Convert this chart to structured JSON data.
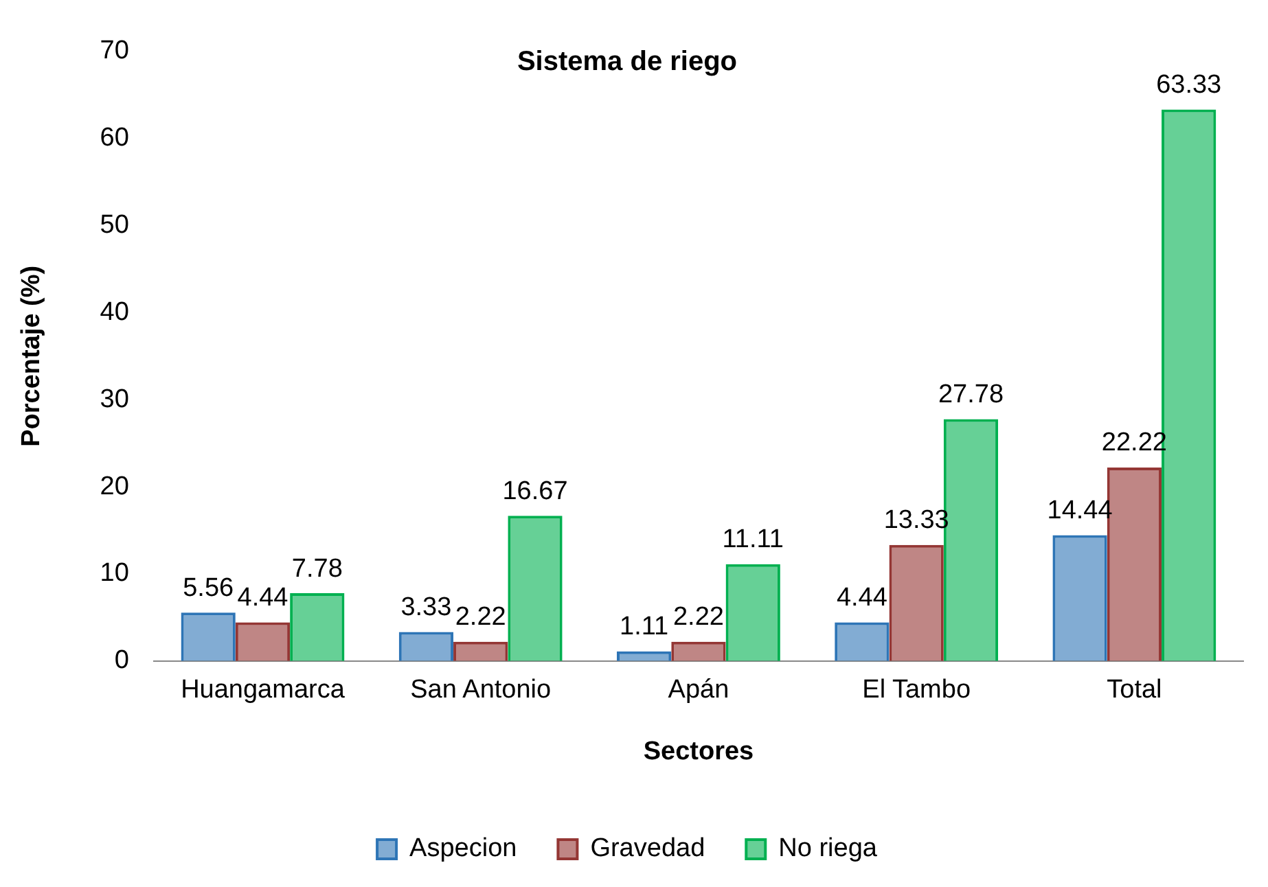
{
  "chart_data": {
    "type": "bar",
    "title": "Sistema de riego",
    "xlabel": "Sectores",
    "ylabel": "Porcentaje (%)",
    "categories": [
      "Huangamarca",
      "San Antonio",
      "Apán",
      "El Tambo",
      "Total"
    ],
    "series": [
      {
        "name": "Aspecion",
        "color": "#2e75b6",
        "values": [
          5.56,
          3.33,
          1.11,
          4.44,
          14.44
        ]
      },
      {
        "name": "Gravedad",
        "color": "#943634",
        "values": [
          4.44,
          2.22,
          2.22,
          13.33,
          22.22
        ]
      },
      {
        "name": "No riega",
        "color": "#00b050",
        "values": [
          7.78,
          16.67,
          11.11,
          27.78,
          63.33
        ]
      }
    ],
    "ylim": [
      0,
      70
    ],
    "yticks": [
      0,
      10,
      20,
      30,
      40,
      50,
      60,
      70
    ],
    "grid": false,
    "legend": "bottom",
    "data_labels": true
  }
}
